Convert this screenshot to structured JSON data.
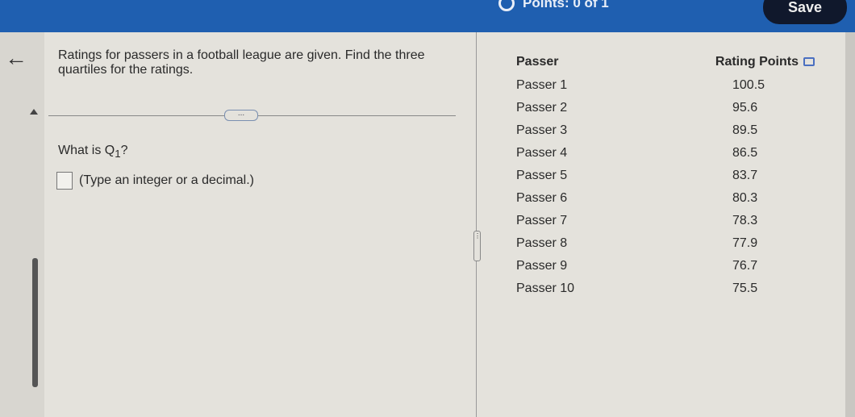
{
  "header": {
    "points_label": "Points: 0 of 1",
    "save_label": "Save"
  },
  "question": {
    "prompt": "Ratings for passers in a football league are given. Find the three quartiles for the ratings.",
    "expand_label": "...",
    "ask_prefix": "What is ",
    "ask_var": "Q",
    "ask_sub": "1",
    "ask_suffix": "?",
    "answer_value": "",
    "hint": "(Type an integer or a decimal.)"
  },
  "table": {
    "headers": [
      "Passer",
      "Rating Points"
    ],
    "rows": [
      [
        "Passer 1",
        "100.5"
      ],
      [
        "Passer 2",
        "95.6"
      ],
      [
        "Passer 3",
        "89.5"
      ],
      [
        "Passer 4",
        "86.5"
      ],
      [
        "Passer 5",
        "83.7"
      ],
      [
        "Passer 6",
        "80.3"
      ],
      [
        "Passer 7",
        "78.3"
      ],
      [
        "Passer 8",
        "77.9"
      ],
      [
        "Passer 9",
        "76.7"
      ],
      [
        "Passer 10",
        "75.5"
      ]
    ]
  }
}
